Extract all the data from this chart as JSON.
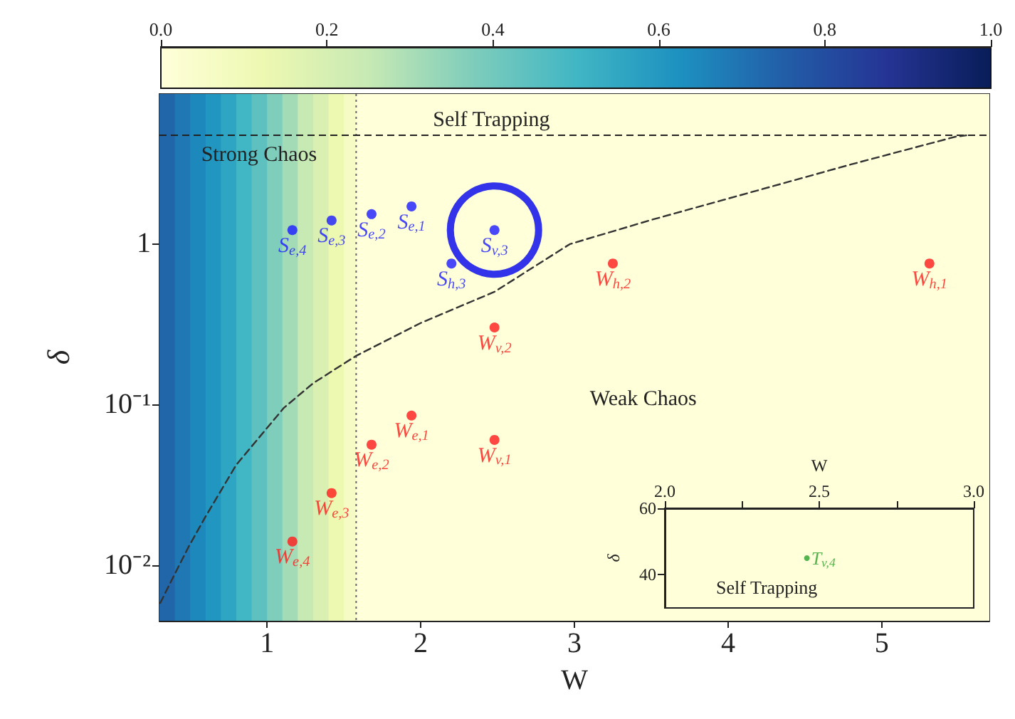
{
  "chart_data": [
    {
      "type": "scatter",
      "xlabel": "W",
      "ylabel": "δ",
      "log": "y",
      "marker": "circle",
      "xlim": [
        0.3,
        5.7
      ],
      "ylim": [
        0.0045,
        8.5
      ],
      "xticks": [
        1,
        2,
        3,
        4,
        5
      ],
      "yticks": [
        {
          "value": 0.01,
          "label": "10⁻²"
        },
        {
          "value": 0.1,
          "label": "10⁻¹"
        },
        1
      ],
      "clim": [
        0,
        1
      ],
      "cticks": [
        {
          "value": 0,
          "label": "0.0"
        },
        0.2,
        0.4,
        0.6,
        0.8,
        {
          "value": 1,
          "label": "1.0"
        }
      ],
      "series": [
        {
          "color": "#1a1aff",
          "x": [
            1.94,
            1.68,
            1.42,
            1.165,
            2.48,
            2.2
          ],
          "values": [
            1.7,
            1.52,
            1.39,
            1.21,
            1.21,
            0.75
          ]
        },
        {
          "color": "#ff1a1a",
          "x": [
            1.94,
            1.68,
            1.42,
            1.165,
            2.48,
            2.48,
            3.25,
            5.31
          ],
          "values": [
            0.085,
            0.056,
            0.028,
            0.014,
            0.06,
            0.3,
            0.75,
            0.75
          ]
        },
        {
          "type": "line",
          "color": "#333333",
          "line_style": "dashed",
          "marker": "none",
          "x": [
            0.305,
            0.4,
            0.49,
            0.6,
            0.8,
            1.11,
            1.3,
            1.58,
            2.0,
            2.48,
            2.97,
            3.5,
            4.21,
            4.8,
            5.48,
            5.55
          ],
          "values": [
            0.0058,
            0.0088,
            0.013,
            0.02,
            0.042,
            0.095,
            0.135,
            0.2,
            0.32,
            0.5,
            0.99,
            1.4,
            2.16,
            3.1,
            4.61,
            4.7
          ]
        },
        {
          "type": "bubble",
          "color": "#0000ee",
          "x": [
            2.48
          ],
          "values": [
            1.21
          ],
          "sizes": [
            1
          ]
        }
      ],
      "ref_lines": [
        {
          "axis": "x",
          "value": 1.58,
          "line_style": "dotted",
          "color": "#666666"
        },
        {
          "axis": "y",
          "value": 4.7,
          "line_style": "dashed",
          "color": "#222222",
          "label": "Self Trapping"
        }
      ],
      "bands": [
        {
          "axis": "x",
          "from": 0.3,
          "to": 0.4,
          "color": "#2166a9"
        },
        {
          "axis": "x",
          "from": 0.4,
          "to": 0.5,
          "color": "#1f78b4"
        },
        {
          "axis": "x",
          "from": 0.5,
          "to": 0.6,
          "color": "#1d88bc"
        },
        {
          "axis": "x",
          "from": 0.6,
          "to": 0.7,
          "color": "#2196c1"
        },
        {
          "axis": "x",
          "from": 0.7,
          "to": 0.8,
          "color": "#2ea5c2"
        },
        {
          "axis": "x",
          "from": 0.8,
          "to": 0.9,
          "color": "#41b6c4"
        },
        {
          "axis": "x",
          "from": 0.9,
          "to": 1.0,
          "color": "#5ec1bf"
        },
        {
          "axis": "x",
          "from": 1.0,
          "to": 1.1,
          "color": "#7fcdbb"
        },
        {
          "axis": "x",
          "from": 1.1,
          "to": 1.2,
          "color": "#a3dbb7"
        },
        {
          "axis": "x",
          "from": 1.2,
          "to": 1.3,
          "color": "#c7e9b4"
        },
        {
          "axis": "x",
          "from": 1.3,
          "to": 1.4,
          "color": "#daf0b2"
        },
        {
          "axis": "x",
          "from": 1.4,
          "to": 1.5,
          "color": "#edf8b1"
        },
        {
          "axis": "x",
          "from": 1.5,
          "to": 1.58,
          "color": "#f6fbc5"
        },
        {
          "axis": "x",
          "from": 1.58,
          "to": 5.7,
          "color": "#ffffd9"
        }
      ],
      "annotations": [
        {
          "text": "S$_{e,1}$",
          "x": 1.94,
          "y": 1.7
        },
        {
          "text": "S$_{e,2}$",
          "x": 1.68,
          "y": 1.52
        },
        {
          "text": "S$_{e,3}$",
          "x": 1.42,
          "y": 1.39
        },
        {
          "text": "S$_{e,4}$",
          "x": 1.165,
          "y": 1.21
        },
        {
          "text": "S$_{v,3}$",
          "x": 2.48,
          "y": 1.21
        },
        {
          "text": "S$_{h,3}$",
          "x": 2.2,
          "y": 0.75
        },
        {
          "text": "W$_{e,1}$",
          "x": 1.94,
          "y": 0.085
        },
        {
          "text": "W$_{e,2}$",
          "x": 1.68,
          "y": 0.056
        },
        {
          "text": "W$_{e,3}$",
          "x": 1.42,
          "y": 0.028
        },
        {
          "text": "W$_{e,4}$",
          "x": 1.165,
          "y": 0.014
        },
        {
          "text": "W$_{v,1}$",
          "x": 2.48,
          "y": 0.06
        },
        {
          "text": "W$_{v,2}$",
          "x": 2.48,
          "y": 0.3
        },
        {
          "text": "W$_{h,2}$",
          "x": 3.25,
          "y": 0.75
        },
        {
          "text": "W$_{h,1}$",
          "x": 5.31,
          "y": 0.75
        },
        "Strong Chaos",
        "Weak Chaos"
      ]
    },
    {
      "type": "scatter",
      "xlabel": "W",
      "ylabel": "δ",
      "marker": "circle",
      "xlim": [
        2.0,
        3.0
      ],
      "xticks": [
        {
          "value": 2,
          "label": "2.0"
        },
        {
          "value": 2.25,
          "label": null
        },
        2.5,
        {
          "value": 2.75,
          "label": null
        },
        {
          "value": 3,
          "label": "3.0"
        }
      ],
      "ylim": [
        30,
        60
      ],
      "yticks": [
        40,
        60
      ],
      "series": [
        {
          "color": "#2ca02c",
          "x": [
            2.46
          ],
          "values": [
            45
          ]
        }
      ],
      "annotations": [
        {
          "text": "T$_{v,4}$",
          "x": 2.46,
          "y": 45
        },
        "Self Trapping"
      ]
    }
  ]
}
